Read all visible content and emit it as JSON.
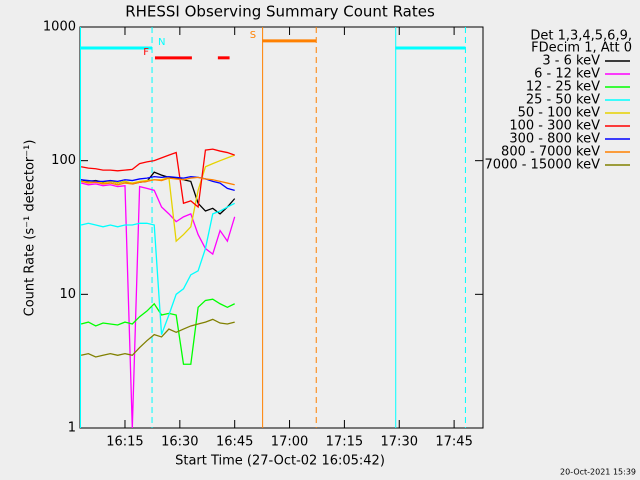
{
  "chart_data": {
    "type": "line",
    "title": "RHESSI Observing Summary Count Rates",
    "xlabel": "Start Time (27-Oct-02 16:05:42)",
    "ylabel": "Count Rate (s⁻¹ detector⁻¹)",
    "footer": "20-Oct-2021 15:39",
    "legend_header": [
      "Det 1,3,4,5,6,9,",
      "FDecim 1, Att 0"
    ],
    "log_y": true,
    "xlim": [
      962.7,
      1072.9
    ],
    "xticks": [
      {
        "value": 975,
        "label": "16:15"
      },
      {
        "value": 990,
        "label": "16:30"
      },
      {
        "value": 1005,
        "label": "16:45"
      },
      {
        "value": 1020,
        "label": "17:00"
      },
      {
        "value": 1035,
        "label": "17:15"
      },
      {
        "value": 1050,
        "label": "17:30"
      },
      {
        "value": 1065,
        "label": "17:45"
      }
    ],
    "ylim": [
      1,
      1000
    ],
    "yticks": [
      1,
      10,
      100,
      1000
    ],
    "x": [
      963,
      965,
      967,
      969,
      971,
      973,
      975,
      977,
      979,
      981,
      983,
      985,
      987,
      989,
      991,
      993,
      995,
      997,
      999,
      1001,
      1003,
      1005
    ],
    "series": [
      {
        "name": "3 - 6 keV",
        "color": "#000000",
        "values": [
          72,
          70,
          71,
          69,
          70,
          68,
          70,
          67,
          69,
          70,
          82,
          78,
          75,
          74,
          72,
          70,
          48,
          42,
          44,
          40,
          45,
          52
        ]
      },
      {
        "name": "6 - 12 keV",
        "color": "#ff00ff",
        "values": [
          68,
          66,
          67,
          65,
          66,
          64,
          65,
          1,
          64,
          62,
          60,
          45,
          40,
          35,
          38,
          40,
          28,
          22,
          20,
          30,
          25,
          38
        ]
      },
      {
        "name": "12 - 25 keV",
        "color": "#00ff00",
        "values": [
          6,
          6.2,
          5.8,
          6.1,
          6,
          5.9,
          6.2,
          6,
          6.8,
          7.5,
          8.5,
          7,
          7.2,
          7,
          3,
          3,
          8,
          9,
          9.2,
          8.5,
          8,
          8.5
        ]
      },
      {
        "name": "25 - 50 keV",
        "color": "#00ffff",
        "values": [
          33,
          34,
          33,
          32,
          33,
          32,
          33,
          33,
          34,
          34,
          33,
          5,
          7,
          10,
          11,
          14,
          15,
          22,
          40,
          42,
          45,
          48
        ]
      },
      {
        "name": "50 - 100 keV",
        "color": "#e6d200",
        "values": [
          70,
          69,
          70,
          68,
          70,
          68,
          70,
          68,
          70,
          71,
          72,
          72,
          75,
          25,
          28,
          32,
          60,
          90,
          95,
          100,
          105,
          110
        ]
      },
      {
        "name": "100 - 300 keV",
        "color": "#ff0000",
        "values": [
          90,
          88,
          87,
          85,
          85,
          84,
          85,
          86,
          95,
          98,
          100,
          105,
          110,
          115,
          48,
          50,
          45,
          120,
          122,
          118,
          115,
          110
        ]
      },
      {
        "name": "300 - 800 keV",
        "color": "#0000ff",
        "values": [
          72,
          71,
          70,
          70,
          71,
          70,
          72,
          71,
          73,
          74,
          76,
          75,
          76,
          75,
          74,
          76,
          75,
          73,
          70,
          68,
          62,
          60
        ]
      },
      {
        "name": "800 - 7000 keV",
        "color": "#ff8000",
        "values": [
          70,
          68,
          69,
          67,
          68,
          66,
          68,
          67,
          69,
          70,
          72,
          71,
          74,
          73,
          72,
          74,
          75,
          73,
          72,
          70,
          68,
          66
        ]
      },
      {
        "name": "7000 - 15000 keV",
        "color": "#808000",
        "values": [
          3.5,
          3.6,
          3.4,
          3.5,
          3.6,
          3.5,
          3.6,
          3.5,
          4,
          4.5,
          5,
          4.8,
          5.5,
          5.2,
          5.5,
          5.8,
          6,
          6.2,
          6.5,
          6.1,
          6,
          6.2
        ]
      }
    ],
    "flags": [
      {
        "label": "N",
        "color": "#00ffff",
        "level": 697,
        "bounds": true,
        "intervals": [
          [
            962.7,
            982.4
          ],
          [
            1048.9,
            1068.1
          ]
        ]
      },
      {
        "label": "F",
        "color": "#ff0000",
        "level": 588,
        "bounds": false,
        "intervals": [
          [
            983.2,
            993.3
          ],
          [
            1000.4,
            1003.6
          ]
        ]
      },
      {
        "label": "S",
        "color": "#ff8000",
        "level": 787,
        "bounds": true,
        "intervals": [
          [
            1012.5,
            1027.3
          ]
        ]
      }
    ]
  }
}
